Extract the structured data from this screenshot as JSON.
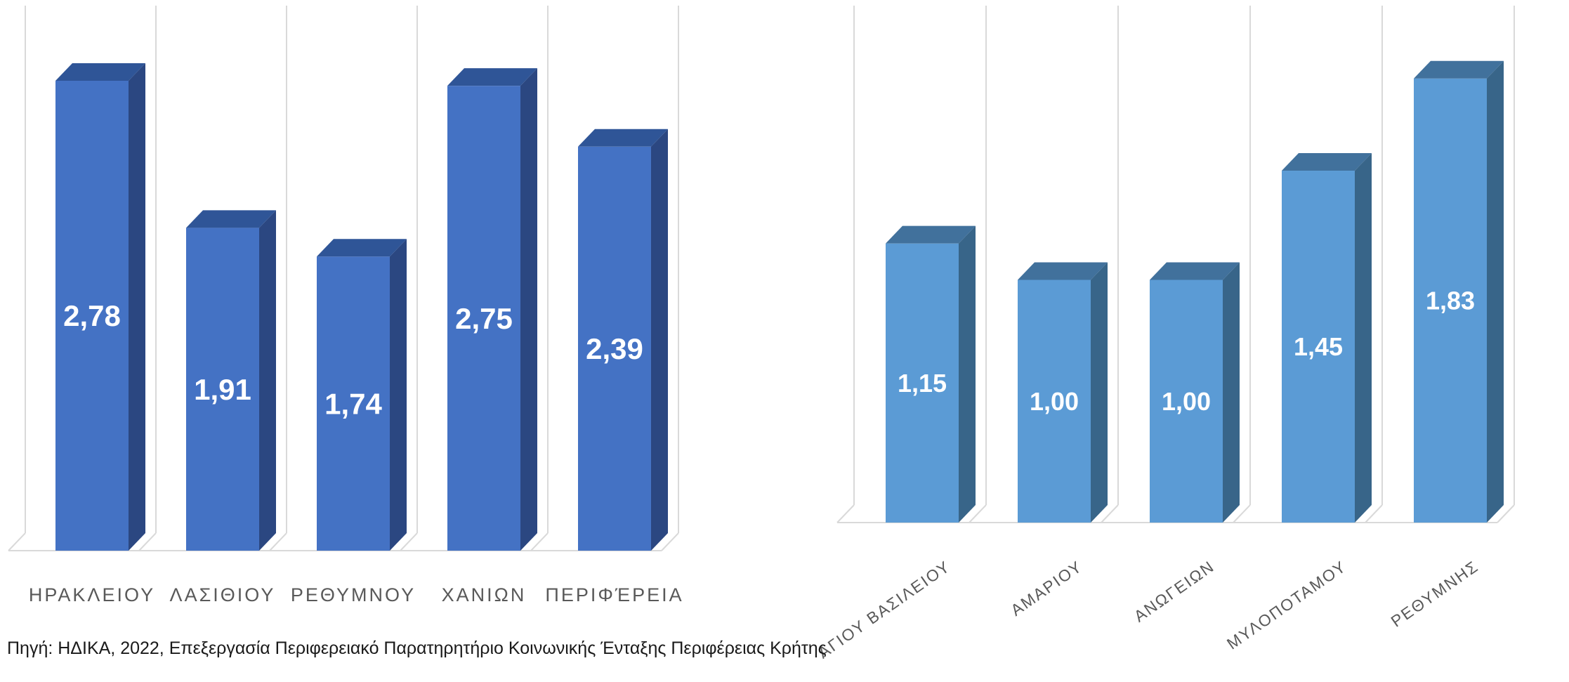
{
  "chart_data": [
    {
      "type": "bar",
      "three_d": true,
      "categories": [
        "ΗΡΑΚΛΕΙΟΥ",
        "ΛΑΣΙΘΙΟΥ",
        "ΡΕΘΥΜΝΟΥ",
        "ΧΑΝΙΩΝ",
        "ΠΕΡΙΦΈΡΕΙΑ"
      ],
      "values": [
        2.78,
        1.91,
        1.74,
        2.75,
        2.39
      ],
      "data_labels": [
        "2,78",
        "1,91",
        "1,74",
        "2,75",
        "2,39"
      ],
      "ylim": [
        0,
        3
      ],
      "grid": true,
      "colors": {
        "front": "#4472C4",
        "top": "#2F5597",
        "side": "#2B4781"
      }
    },
    {
      "type": "bar",
      "three_d": true,
      "categories": [
        "ΑΓΙΟΥ ΒΑΣΙΛΕΙΟΥ",
        "ΑΜΑΡΙΟΥ",
        "ΑΝΩΓΕΙΩΝ",
        "ΜΥΛΟΠΟΤΑΜΟΥ",
        "ΡΕΘΥΜΝΗΣ"
      ],
      "values": [
        1.15,
        1.0,
        1.0,
        1.45,
        1.83
      ],
      "data_labels": [
        "1,15",
        "1,00",
        "1,00",
        "1,45",
        "1,83"
      ],
      "ylim": [
        0,
        2
      ],
      "grid": true,
      "colors": {
        "front": "#5B9BD5",
        "top": "#41719C",
        "side": "#386589"
      }
    }
  ],
  "source": "Πηγή: ΗΔΙΚΑ, 2022, Επεξεργασία Περιφερειακό Παρατηρητήριο Κοινωνικής Ένταξης Περιφέρειας Κρήτης"
}
